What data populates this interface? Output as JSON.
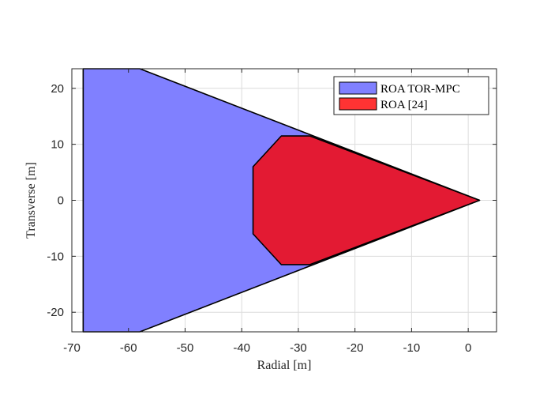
{
  "chart_data": {
    "type": "area",
    "xlabel": "Radial [m]",
    "ylabel": "Transverse [m]",
    "xlim": [
      -70,
      5
    ],
    "ylim": [
      -23.5,
      23.5
    ],
    "xticks": [
      -70,
      -60,
      -50,
      -40,
      -30,
      -20,
      -10,
      0
    ],
    "yticks": [
      -20,
      -10,
      0,
      10,
      20
    ],
    "grid": true,
    "legend_position": "top-right",
    "series": [
      {
        "name": "ROA TOR-MPC",
        "color": "#8080ff",
        "polygon": [
          [
            -68,
            23.5
          ],
          [
            -58,
            23.5
          ],
          [
            2,
            0
          ],
          [
            -58,
            -23.5
          ],
          [
            -68,
            -23.5
          ]
        ]
      },
      {
        "name": "ROA [24]",
        "color": "#e31a33",
        "legend_color": "#ff3333",
        "polygon": [
          [
            -33,
            11.5
          ],
          [
            -28,
            11.5
          ],
          [
            2,
            0
          ],
          [
            -28,
            -11.5
          ],
          [
            -33,
            -11.5
          ],
          [
            -38,
            -6
          ],
          [
            -38,
            6
          ]
        ]
      }
    ]
  }
}
